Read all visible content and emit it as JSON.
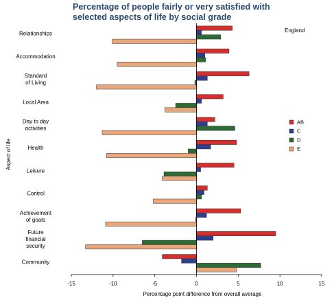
{
  "title": "Percentage of people fairly or very satisfied with selected aspects of life by social grade",
  "title_lines": [
    "Percentage of people fairly or very satisfied with",
    "selected aspects of life by social grade"
  ],
  "region": "England",
  "colors": {
    "AB": "#d32f2f",
    "C": "#2e3f8f",
    "D": "#2e6b34",
    "E": "#e8a77a"
  },
  "chart_data": {
    "type": "bar",
    "orientation": "horizontal",
    "title": "Percentage of people fairly or very satisfied with selected aspects of life by social grade",
    "xlabel": "Percentage point difference from overall average",
    "ylabel": "Aspect of life",
    "xlim": [
      -15,
      15
    ],
    "xticks": [
      -15,
      -10,
      -5,
      0,
      5,
      10,
      15
    ],
    "grid": false,
    "legend_position": "right",
    "categories": [
      [
        "Relationships"
      ],
      [
        "Accommodation"
      ],
      [
        "Standard",
        "of Living"
      ],
      [
        "Local Area"
      ],
      [
        "Day to day",
        "activities"
      ],
      [
        "Health"
      ],
      [
        "Leisure"
      ],
      [
        "Control"
      ],
      [
        "Achievement",
        "of goals"
      ],
      [
        "Future",
        "financial",
        "security"
      ],
      [
        "Community"
      ]
    ],
    "series": [
      {
        "name": "AB",
        "values": [
          4.3,
          3.9,
          6.3,
          3.2,
          2.2,
          4.8,
          4.5,
          1.3,
          5.3,
          9.5,
          -4.1
        ]
      },
      {
        "name": "C",
        "values": [
          0.6,
          1.0,
          1.3,
          0.6,
          1.3,
          1.7,
          0.5,
          0.9,
          1.2,
          2.0,
          -1.8
        ]
      },
      {
        "name": "D",
        "values": [
          2.9,
          1.1,
          -0.2,
          -2.5,
          4.6,
          -1.0,
          -3.9,
          0.6,
          -0.1,
          -6.5,
          7.7
        ]
      },
      {
        "name": "E",
        "values": [
          -10.1,
          -9.5,
          -12.0,
          -3.8,
          -11.3,
          -10.8,
          -4.1,
          -5.2,
          -10.9,
          -13.3,
          4.8
        ]
      }
    ]
  }
}
